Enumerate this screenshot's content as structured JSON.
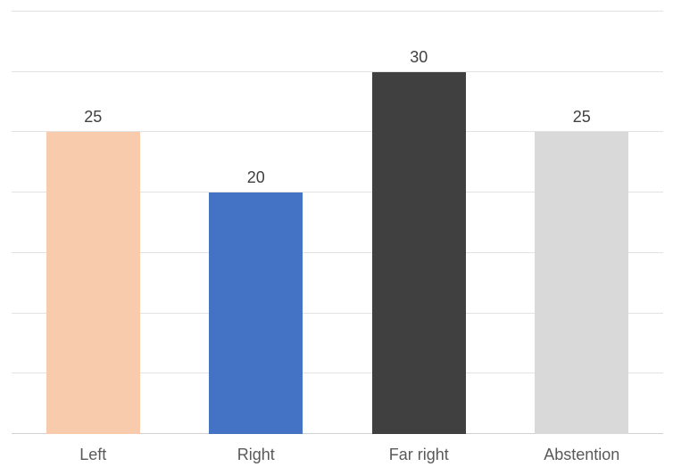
{
  "chart_data": {
    "type": "bar",
    "categories": [
      "Left",
      "Right",
      "Far right",
      "Abstention"
    ],
    "values": [
      25,
      20,
      30,
      25
    ],
    "data_labels": [
      "25",
      "20",
      "30",
      "25"
    ],
    "bar_colors": [
      "#F7CBAC",
      "#4472C4",
      "#404040",
      "#D9D9D9"
    ],
    "ylim": [
      0,
      35
    ],
    "gridline_step": 5,
    "grid": true,
    "legend": "none",
    "y_axis_labels_visible": false,
    "gridline_color": "#E2E2E2",
    "axis_line_color": "#D0D0D0",
    "data_label_color": "#404040",
    "category_label_color": "#595959"
  }
}
